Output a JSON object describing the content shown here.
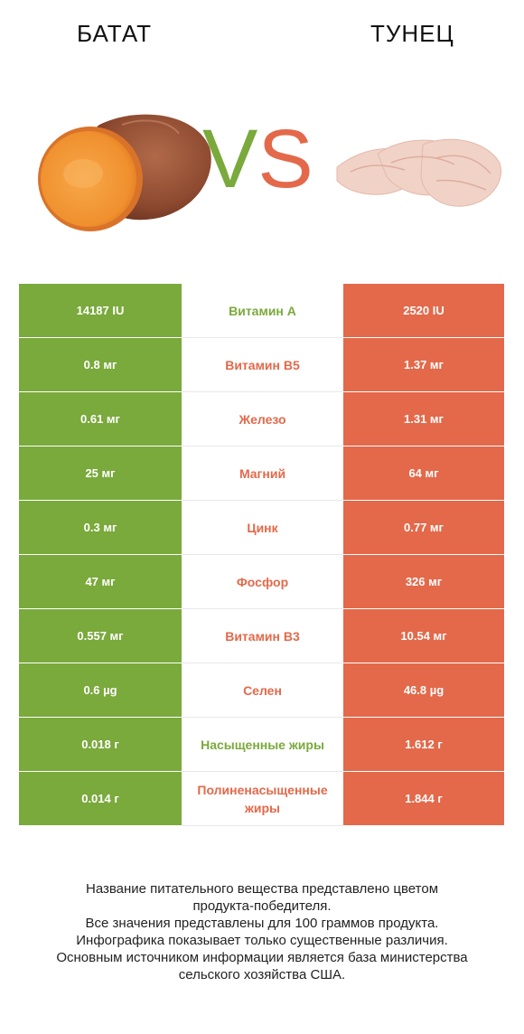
{
  "header": {
    "left_title": "БАТАТ",
    "right_title": "ТУНЕЦ",
    "vs_v": "V",
    "vs_s": "S"
  },
  "colors": {
    "left_accent": "#7aa93c",
    "right_accent": "#e3694a"
  },
  "images": {
    "left": "sweet-potato-image",
    "right": "tuna-image"
  },
  "rows": [
    {
      "left": "14187 IU",
      "name": "Витамин A",
      "right": "2520 IU",
      "winner": "left"
    },
    {
      "left": "0.8 мг",
      "name": "Витамин B5",
      "right": "1.37 мг",
      "winner": "right"
    },
    {
      "left": "0.61 мг",
      "name": "Железо",
      "right": "1.31 мг",
      "winner": "right"
    },
    {
      "left": "25 мг",
      "name": "Магний",
      "right": "64 мг",
      "winner": "right"
    },
    {
      "left": "0.3 мг",
      "name": "Цинк",
      "right": "0.77 мг",
      "winner": "right"
    },
    {
      "left": "47 мг",
      "name": "Фосфор",
      "right": "326 мг",
      "winner": "right"
    },
    {
      "left": "0.557 мг",
      "name": "Витамин B3",
      "right": "10.54 мг",
      "winner": "right"
    },
    {
      "left": "0.6 µg",
      "name": "Селен",
      "right": "46.8 µg",
      "winner": "right"
    },
    {
      "left": "0.018 г",
      "name": "Насыщенные жиры",
      "right": "1.612 г",
      "winner": "left"
    },
    {
      "left": "0.014 г",
      "name": "Полиненасыщенные жиры",
      "right": "1.844 г",
      "winner": "right"
    }
  ],
  "footer": {
    "line1": "Название питательного вещества представлено цветом",
    "line2": "продукта-победителя.",
    "line3": "Все значения представлены для 100 граммов продукта.",
    "line4": "Инфографика показывает только существенные различия.",
    "line5": "Основным источником информации является база министерства",
    "line6": "сельского хозяйства США."
  }
}
